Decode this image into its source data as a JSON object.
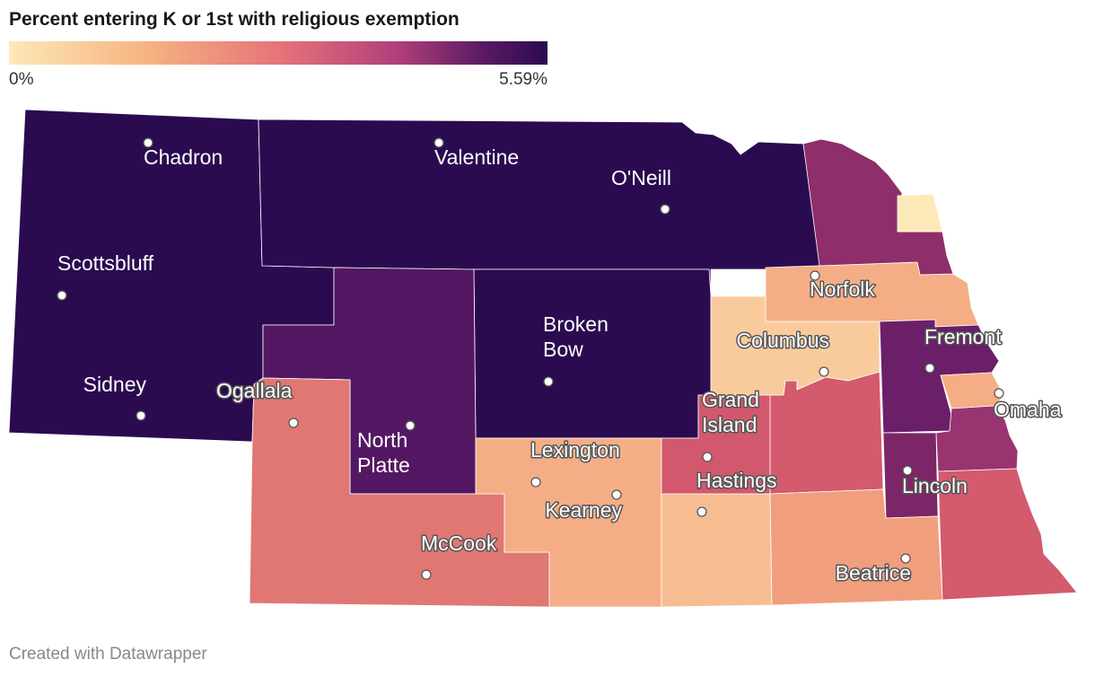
{
  "title": "Percent entering K or 1st with religious exemption",
  "legend": {
    "min_label": "0%",
    "max_label": "5.59%",
    "min_value": 0,
    "max_value": 5.59,
    "colors": [
      "#fde9b8",
      "#f7b483",
      "#e6747a",
      "#b1407a",
      "#5a1a63",
      "#2b0b50"
    ]
  },
  "footer": "Created with Datawrapper",
  "regions": [
    {
      "name": "panhandle",
      "color": "#2b0b50"
    },
    {
      "name": "north-central",
      "color": "#2b0b50"
    },
    {
      "name": "central",
      "color": "#2b0b50"
    },
    {
      "name": "west-central",
      "color": "#541763"
    },
    {
      "name": "southwest",
      "color": "#e07772"
    },
    {
      "name": "south-central-lexington-kearney",
      "color": "#f5ad86"
    },
    {
      "name": "hastings",
      "color": "#f7bd92"
    },
    {
      "name": "grand-island",
      "color": "#d2586d"
    },
    {
      "name": "central-east",
      "color": "#d45a6e"
    },
    {
      "name": "columbus",
      "color": "#f9cb9c"
    },
    {
      "name": "norfolk",
      "color": "#f5ad86"
    },
    {
      "name": "northeast",
      "color": "#8e2e6b"
    },
    {
      "name": "dakota",
      "color": "#fde9b8"
    },
    {
      "name": "fremont",
      "color": "#6a1f68"
    },
    {
      "name": "omaha",
      "color": "#f5ad86"
    },
    {
      "name": "sarpy-cass",
      "color": "#9a3470"
    },
    {
      "name": "lincoln",
      "color": "#7c2668"
    },
    {
      "name": "beatrice",
      "color": "#f19e7d"
    },
    {
      "name": "southeast",
      "color": "#d45a6e"
    }
  ],
  "cities": [
    {
      "name": "Chadron",
      "lines": [
        "Chadron"
      ]
    },
    {
      "name": "Valentine",
      "lines": [
        "Valentine"
      ]
    },
    {
      "name": "O'Neill",
      "lines": [
        "O'Neill"
      ]
    },
    {
      "name": "Scottsbluff",
      "lines": [
        "Scottsbluff"
      ]
    },
    {
      "name": "Sidney",
      "lines": [
        "Sidney"
      ]
    },
    {
      "name": "Ogallala",
      "lines": [
        "Ogallala"
      ]
    },
    {
      "name": "North Platte",
      "lines": [
        "North",
        "Platte"
      ]
    },
    {
      "name": "Broken Bow",
      "lines": [
        "Broken",
        "Bow"
      ]
    },
    {
      "name": "Lexington",
      "lines": [
        "Lexington"
      ]
    },
    {
      "name": "Kearney",
      "lines": [
        "Kearney"
      ]
    },
    {
      "name": "McCook",
      "lines": [
        "McCook"
      ]
    },
    {
      "name": "Grand Island",
      "lines": [
        "Grand",
        "Island"
      ]
    },
    {
      "name": "Hastings",
      "lines": [
        "Hastings"
      ]
    },
    {
      "name": "Columbus",
      "lines": [
        "Columbus"
      ]
    },
    {
      "name": "Norfolk",
      "lines": [
        "Norfolk"
      ]
    },
    {
      "name": "Fremont",
      "lines": [
        "Fremont"
      ]
    },
    {
      "name": "Omaha",
      "lines": [
        "Omaha"
      ]
    },
    {
      "name": "Lincoln",
      "lines": [
        "Lincoln"
      ]
    },
    {
      "name": "Beatrice",
      "lines": [
        "Beatrice"
      ]
    }
  ]
}
